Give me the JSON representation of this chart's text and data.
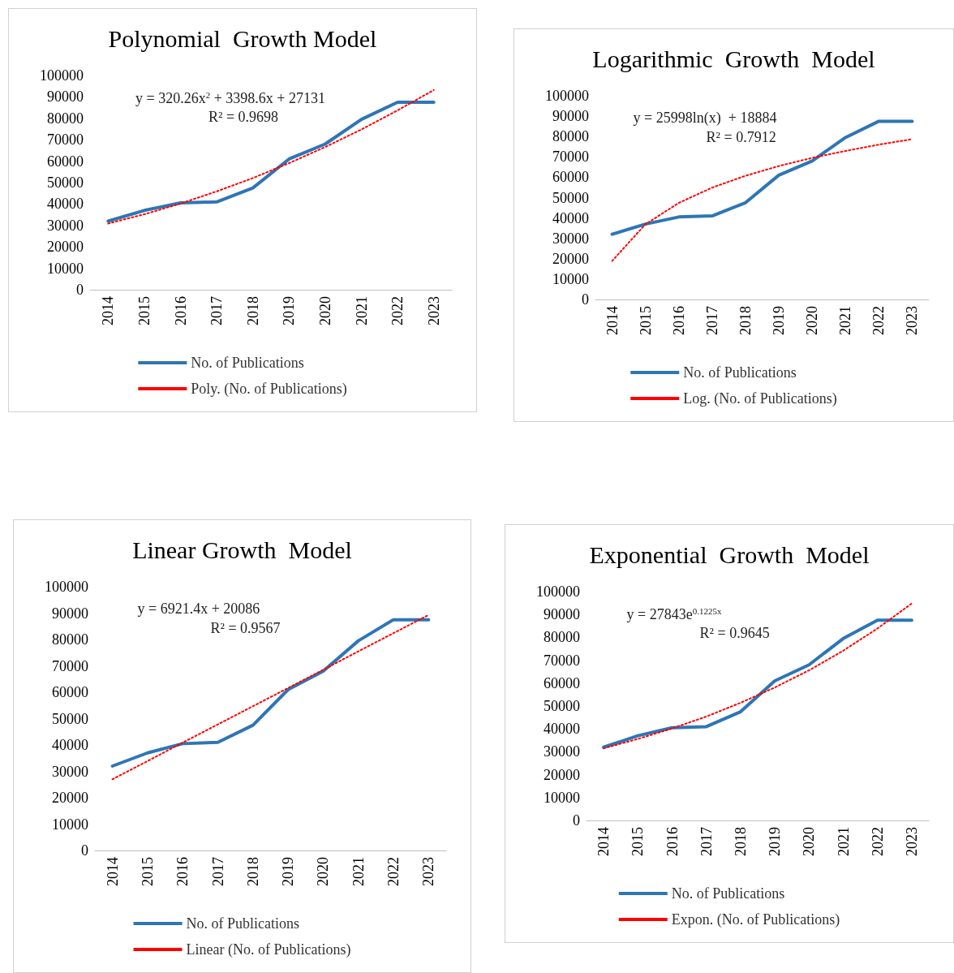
{
  "chart_data": [
    {
      "type": "line",
      "title": "Polynomial  Growth Model",
      "categories": [
        "2014",
        "2015",
        "2016",
        "2017",
        "2018",
        "2019",
        "2020",
        "2021",
        "2022",
        "2023"
      ],
      "series": [
        {
          "name": "No. of Publications",
          "color": "#2e75b6",
          "line_style": "solid",
          "values": [
            32000,
            37000,
            40500,
            41000,
            47500,
            61000,
            68000,
            79500,
            87500,
            87500
          ]
        },
        {
          "name": "Poly. (No. of Publications)",
          "color": "#ff0000",
          "line_style": "dotted",
          "values": [
            30900,
            35200,
            40200,
            45900,
            52100,
            59100,
            66600,
            74800,
            83700,
            93200
          ]
        }
      ],
      "ylim": [
        0,
        100000
      ],
      "yticks": [
        0,
        10000,
        20000,
        30000,
        40000,
        50000,
        60000,
        70000,
        80000,
        90000,
        100000
      ],
      "grid": false,
      "legend": "bottom",
      "marker": "none",
      "annotations": [
        "y = 320.26x$^{2}$ + 3398.6x + 27131",
        "R² = 0.9698"
      ]
    },
    {
      "type": "line",
      "title": "Logarithmic  Growth  Model",
      "categories": [
        "2014",
        "2015",
        "2016",
        "2017",
        "2018",
        "2019",
        "2020",
        "2021",
        "2022",
        "2023"
      ],
      "series": [
        {
          "name": "No. of Publications",
          "color": "#2e75b6",
          "line_style": "solid",
          "values": [
            32000,
            37000,
            40500,
            41000,
            47500,
            61000,
            68000,
            79500,
            87500,
            87500
          ]
        },
        {
          "name": "Log. (No. of Publications)",
          "color": "#ff0000",
          "line_style": "dotted",
          "values": [
            18900,
            36900,
            47400,
            54900,
            60700,
            65500,
            69500,
            72900,
            76000,
            78700
          ]
        }
      ],
      "ylim": [
        0,
        100000
      ],
      "yticks": [
        0,
        10000,
        20000,
        30000,
        40000,
        50000,
        60000,
        70000,
        80000,
        90000,
        100000
      ],
      "grid": false,
      "legend": "bottom",
      "marker": "none",
      "annotations": [
        "y = 25998ln(x)  + 18884",
        "R² = 0.7912"
      ]
    },
    {
      "type": "line",
      "title": "Linear Growth  Model",
      "categories": [
        "2014",
        "2015",
        "2016",
        "2017",
        "2018",
        "2019",
        "2020",
        "2021",
        "2022",
        "2023"
      ],
      "series": [
        {
          "name": "No. of Publications",
          "color": "#2e75b6",
          "line_style": "solid",
          "values": [
            32000,
            37000,
            40500,
            41000,
            47500,
            61000,
            68000,
            79500,
            87500,
            87500
          ]
        },
        {
          "name": "Linear (No. of Publications)",
          "color": "#ff0000",
          "line_style": "dotted",
          "values": [
            27000,
            33900,
            40900,
            47800,
            54700,
            61600,
            68500,
            75500,
            82400,
            89300
          ]
        }
      ],
      "ylim": [
        0,
        100000
      ],
      "yticks": [
        0,
        10000,
        20000,
        30000,
        40000,
        50000,
        60000,
        70000,
        80000,
        90000,
        100000
      ],
      "grid": false,
      "legend": "bottom",
      "marker": "none",
      "annotations": [
        "y = 6921.4x + 20086",
        "R² = 0.9567"
      ]
    },
    {
      "type": "line",
      "title": "Exponential  Growth  Model",
      "categories": [
        "2014",
        "2015",
        "2016",
        "2017",
        "2018",
        "2019",
        "2020",
        "2021",
        "2022",
        "2023"
      ],
      "series": [
        {
          "name": "No. of Publications",
          "color": "#2e75b6",
          "line_style": "solid",
          "values": [
            32000,
            37000,
            40500,
            41000,
            47500,
            61000,
            68000,
            79500,
            87500,
            87500
          ]
        },
        {
          "name": "Expon. (No. of Publications)",
          "color": "#ff0000",
          "line_style": "dotted",
          "values": [
            31500,
            35600,
            40200,
            45400,
            51400,
            58100,
            65600,
            74200,
            83900,
            94800
          ]
        }
      ],
      "ylim": [
        0,
        100000
      ],
      "yticks": [
        0,
        10000,
        20000,
        30000,
        40000,
        50000,
        60000,
        70000,
        80000,
        90000,
        100000
      ],
      "grid": false,
      "legend": "bottom",
      "marker": "none",
      "annotations": [
        "y = 27843e$^{0.1225x}$",
        "R² = 0.9645"
      ]
    }
  ]
}
